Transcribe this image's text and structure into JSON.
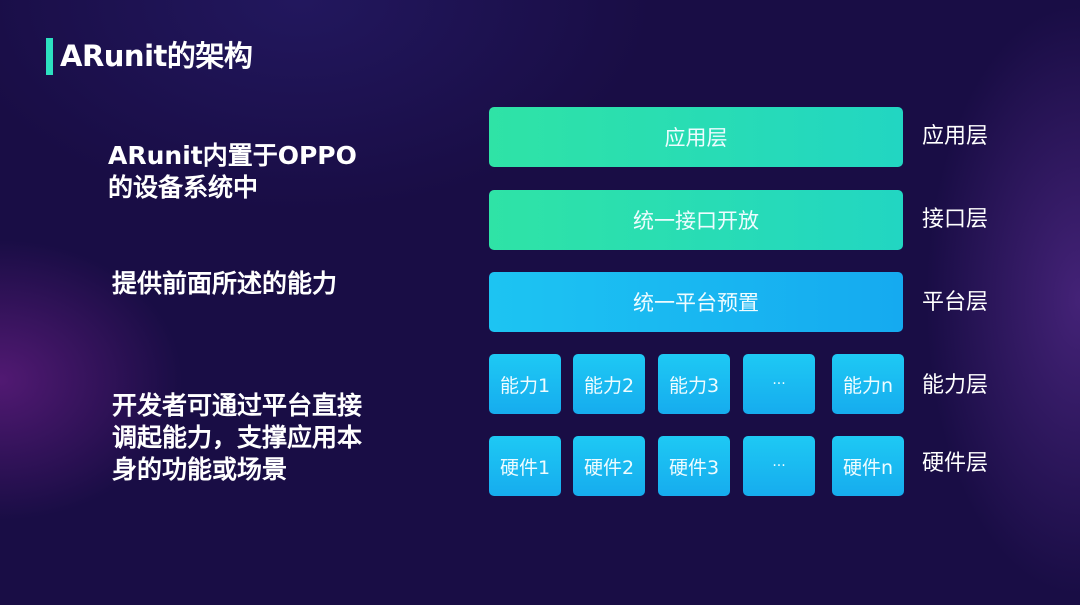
{
  "title": "ARunit的架构",
  "left_text": {
    "point1": [
      "ARunit内置于OPPO",
      "的设备系统中"
    ],
    "point2": "提供前面所述的能力",
    "point3": [
      "开发者可通过平台直接",
      "调起能力，支撑应用本",
      "身的功能或场景"
    ]
  },
  "diagram": {
    "layers": [
      {
        "box": "应用层",
        "label": "应用层"
      },
      {
        "box": "统一接口开放",
        "label": "接口层"
      },
      {
        "box": "统一平台预置",
        "label": "平台层"
      }
    ],
    "ability_row": {
      "label": "能力层",
      "items": [
        "能力1",
        "能力2",
        "能力3",
        "···",
        "能力n"
      ]
    },
    "hardware_row": {
      "label": "硬件层",
      "items": [
        "硬件1",
        "硬件2",
        "硬件3",
        "···",
        "硬件n"
      ]
    }
  },
  "colors": {
    "accent": "#2de0c0",
    "green_box": "#2fe3a6",
    "blue_box": "#1dc4f2",
    "background": "#190d45"
  }
}
